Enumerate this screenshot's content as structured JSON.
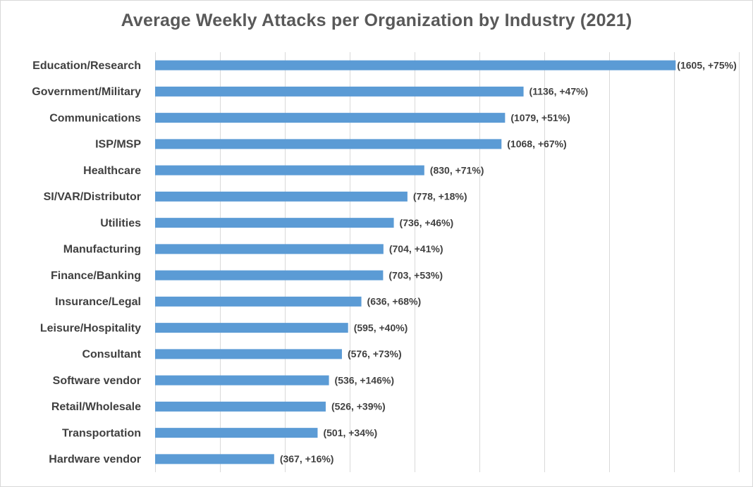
{
  "chart_data": {
    "type": "bar",
    "orientation": "horizontal",
    "title": "Average Weekly Attacks per Organization by Industry (2021)",
    "xlabel": "",
    "ylabel": "",
    "xlim": [
      0,
      1800
    ],
    "grid": true,
    "bar_color": "#5b9bd5",
    "categories": [
      "Education/Research",
      "Government/Military",
      "Communications",
      "ISP/MSP",
      "Healthcare",
      "SI/VAR/Distributor",
      "Utilities",
      "Manufacturing",
      "Finance/Banking",
      "Insurance/Legal",
      "Leisure/Hospitality",
      "Consultant",
      "Software vendor",
      "Retail/Wholesale",
      "Transportation",
      "Hardware vendor"
    ],
    "values": [
      1605,
      1136,
      1079,
      1068,
      830,
      778,
      736,
      704,
      703,
      636,
      595,
      576,
      536,
      526,
      501,
      367
    ],
    "data_labels": [
      "(1605, +75%)",
      "(1136, +47%)",
      "(1079, +51%)",
      "(1068, +67%)",
      "(830, +71%)",
      "(778, +18%)",
      "(736, +46%)",
      "(704, +41%)",
      "(703, +53%)",
      "(636, +68%)",
      "(595, +40%)",
      "(576, +73%)",
      "(536, +146%)",
      "(526, +39%)",
      "(501, +34%)",
      "(367, +16%)"
    ]
  }
}
